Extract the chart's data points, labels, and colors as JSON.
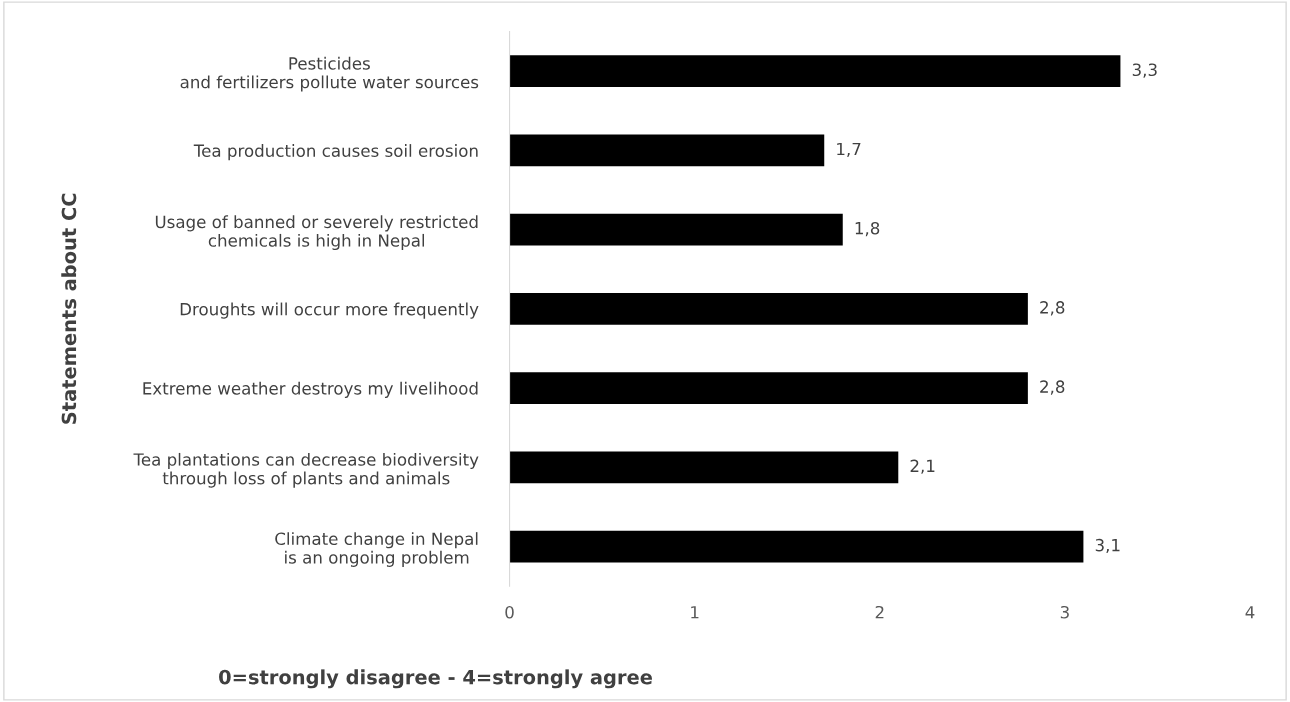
{
  "chart_data": {
    "type": "bar",
    "orientation": "horizontal",
    "categories": [
      "Pesticides\nand fertilizers pollute water sources",
      "Tea production causes soil erosion",
      "Usage of banned or severely restricted\nchemicals is high in Nepal",
      "Droughts will occur more frequently",
      "Extreme weather destroys my livelihood",
      "Tea plantations can decrease biodiversity\nthrough loss of plants and animals",
      "Climate change in Nepal\nis an ongoing problem"
    ],
    "values": [
      3.3,
      1.7,
      1.8,
      2.8,
      2.8,
      2.1,
      3.1
    ],
    "value_labels": [
      "3,3",
      "1,7",
      "1,8",
      "2,8",
      "2,8",
      "2,1",
      "3,1"
    ],
    "color": "#000000",
    "xlim": [
      0,
      4
    ],
    "xticks": [
      0,
      1,
      2,
      3,
      4
    ],
    "xlabel": "0=strongly disagree - 4=strongly agree",
    "ylabel": "Statements about CC",
    "grid": false,
    "legend": false
  }
}
